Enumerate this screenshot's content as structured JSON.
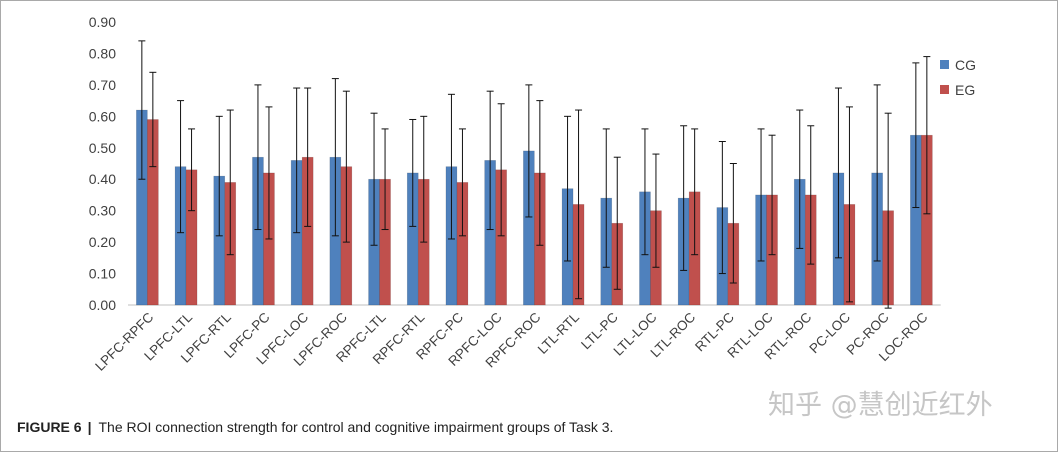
{
  "chart_data": {
    "type": "bar",
    "title": "",
    "xlabel": "",
    "ylabel": "",
    "ylim": [
      0,
      0.9
    ],
    "yticks": [
      "0.00",
      "0.10",
      "0.20",
      "0.30",
      "0.40",
      "0.50",
      "0.60",
      "0.70",
      "0.80",
      "0.90"
    ],
    "grid": false,
    "legend_position": "right",
    "categories": [
      "LPFC-RPFC",
      "LPFC-LTL",
      "LPFC-RTL",
      "LPFC-PC",
      "LPFC-LOC",
      "LPFC-ROC",
      "RPFC-LTL",
      "RPFC-RTL",
      "RPFC-PC",
      "RPFC-LOC",
      "RPFC-ROC",
      "LTL-RTL",
      "LTL-PC",
      "LTL-LOC",
      "LTL-ROC",
      "RTL-PC",
      "RTL-LOC",
      "RTL-ROC",
      "PC-LOC",
      "PC-ROC",
      "LOC-ROC"
    ],
    "series": [
      {
        "name": "CG",
        "color": "#4F81BD",
        "values": [
          0.62,
          0.44,
          0.41,
          0.47,
          0.46,
          0.47,
          0.4,
          0.42,
          0.44,
          0.46,
          0.49,
          0.37,
          0.34,
          0.36,
          0.34,
          0.31,
          0.35,
          0.4,
          0.42,
          0.42,
          0.54
        ],
        "errors": [
          0.22,
          0.21,
          0.19,
          0.23,
          0.23,
          0.25,
          0.21,
          0.17,
          0.23,
          0.22,
          0.21,
          0.23,
          0.22,
          0.2,
          0.23,
          0.21,
          0.21,
          0.22,
          0.27,
          0.28,
          0.23
        ]
      },
      {
        "name": "EG",
        "color": "#C0504D",
        "values": [
          0.59,
          0.43,
          0.39,
          0.42,
          0.47,
          0.44,
          0.4,
          0.4,
          0.39,
          0.43,
          0.42,
          0.32,
          0.26,
          0.3,
          0.36,
          0.26,
          0.35,
          0.35,
          0.32,
          0.3,
          0.54
        ],
        "errors": [
          0.15,
          0.13,
          0.23,
          0.21,
          0.22,
          0.24,
          0.16,
          0.2,
          0.17,
          0.21,
          0.23,
          0.3,
          0.21,
          0.18,
          0.2,
          0.19,
          0.19,
          0.22,
          0.31,
          0.31,
          0.25
        ]
      }
    ]
  },
  "caption": {
    "label": "FIGURE 6",
    "separator": "|",
    "text": "The ROI connection strength for control and cognitive impairment groups of Task 3."
  },
  "watermark": "知乎 @慧创近红外"
}
